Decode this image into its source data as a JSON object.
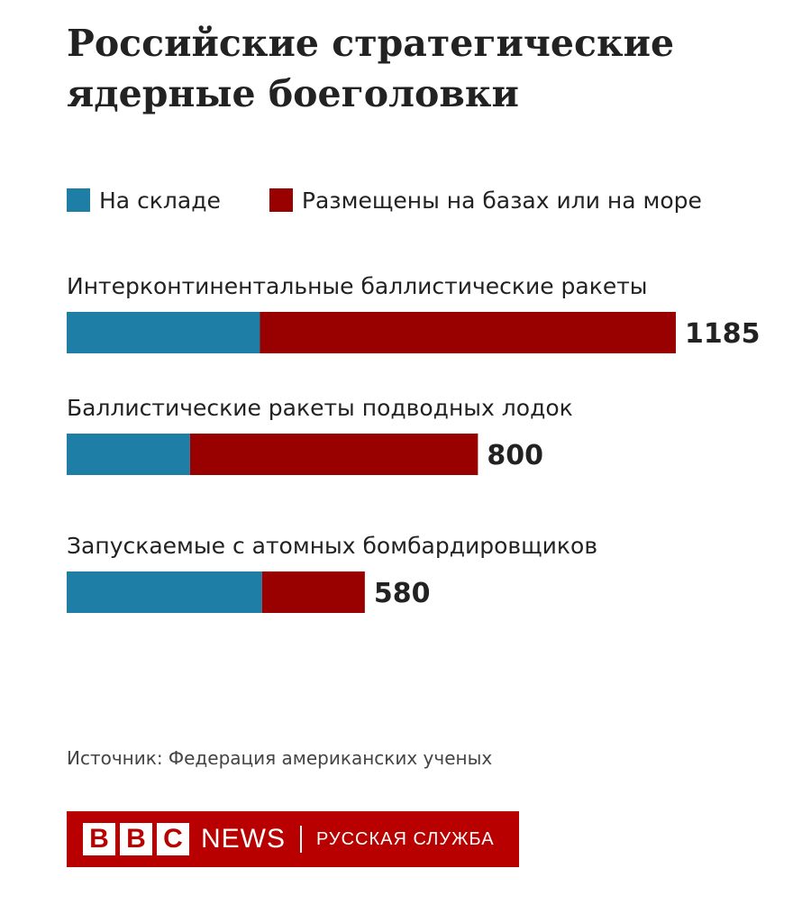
{
  "chart_data": {
    "type": "bar",
    "orientation": "horizontal",
    "stacked": true,
    "title": "Российские стратегические ядерные боеголовки",
    "categories": [
      "Интерконтинентальные баллистические ракеты",
      "Баллистические ракеты подводных лодок",
      "Запускаемые с атомных бомбардировщиков"
    ],
    "series": [
      {
        "name": "На складе",
        "color": "#1f7ea6",
        "values": [
          376,
          240,
          380
        ]
      },
      {
        "name": "Размещены на базах или на море",
        "color": "#990000",
        "values": [
          809,
          560,
          200
        ]
      }
    ],
    "totals": [
      "1185",
      "800",
      "580"
    ],
    "xlim": [
      0,
      1185
    ],
    "grid": false,
    "legend_position": "top"
  },
  "source": "Источник: Федерация американских ученых",
  "logo": {
    "blocks": [
      "B",
      "B",
      "C"
    ],
    "news": "NEWS",
    "service": "РУССКАЯ СЛУЖБА"
  }
}
